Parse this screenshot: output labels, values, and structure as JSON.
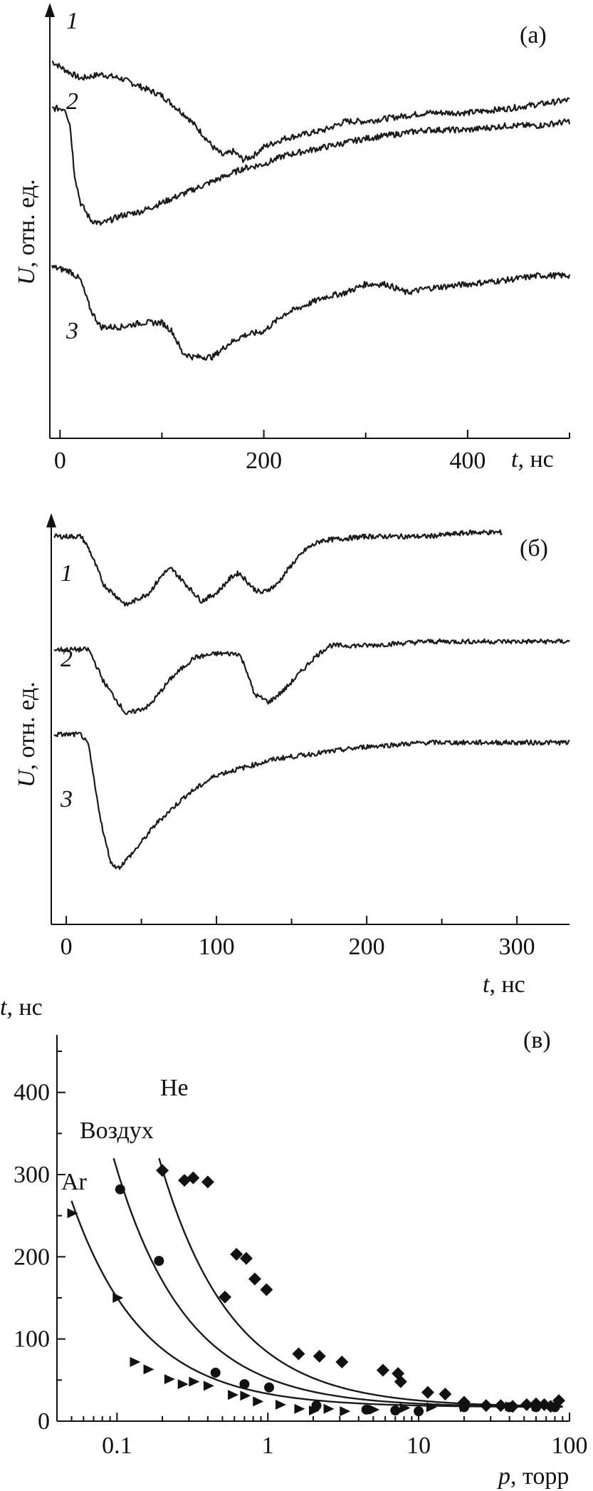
{
  "chart_data": [
    {
      "type": "line",
      "panel": "(a)",
      "panel_label": "(а)",
      "ylabel_var": "U",
      "ylabel_rest": ", отн. ед.",
      "xlabel_var": "t",
      "xlabel_rest": ", нс",
      "xlim": [
        -10,
        500
      ],
      "ylim": [
        0,
        1
      ],
      "x_ticks": [
        0,
        200,
        400
      ],
      "x_minor": [
        100,
        300,
        500
      ],
      "series": [
        {
          "name": "1",
          "points": [
            [
              -8,
              0.88
            ],
            [
              5,
              0.86
            ],
            [
              20,
              0.84
            ],
            [
              40,
              0.85
            ],
            [
              60,
              0.84
            ],
            [
              80,
              0.82
            ],
            [
              100,
              0.8
            ],
            [
              115,
              0.77
            ],
            [
              125,
              0.75
            ],
            [
              140,
              0.71
            ],
            [
              150,
              0.68
            ],
            [
              160,
              0.66
            ],
            [
              170,
              0.67
            ],
            [
              180,
              0.65
            ],
            [
              190,
              0.66
            ],
            [
              200,
              0.68
            ],
            [
              220,
              0.7
            ],
            [
              240,
              0.71
            ],
            [
              260,
              0.72
            ],
            [
              280,
              0.74
            ],
            [
              300,
              0.74
            ],
            [
              330,
              0.75
            ],
            [
              360,
              0.76
            ],
            [
              400,
              0.76
            ],
            [
              440,
              0.77
            ],
            [
              470,
              0.78
            ],
            [
              500,
              0.79
            ]
          ]
        },
        {
          "name": "2",
          "points": [
            [
              -8,
              0.77
            ],
            [
              5,
              0.77
            ],
            [
              10,
              0.73
            ],
            [
              14,
              0.62
            ],
            [
              20,
              0.55
            ],
            [
              30,
              0.51
            ],
            [
              40,
              0.5
            ],
            [
              60,
              0.52
            ],
            [
              80,
              0.53
            ],
            [
              100,
              0.55
            ],
            [
              120,
              0.57
            ],
            [
              140,
              0.59
            ],
            [
              160,
              0.61
            ],
            [
              180,
              0.63
            ],
            [
              200,
              0.64
            ],
            [
              220,
              0.66
            ],
            [
              240,
              0.67
            ],
            [
              260,
              0.68
            ],
            [
              280,
              0.69
            ],
            [
              300,
              0.7
            ],
            [
              330,
              0.71
            ],
            [
              360,
              0.72
            ],
            [
              400,
              0.72
            ],
            [
              440,
              0.73
            ],
            [
              470,
              0.73
            ],
            [
              500,
              0.74
            ]
          ]
        },
        {
          "name": "3",
          "points": [
            [
              -8,
              0.4
            ],
            [
              10,
              0.39
            ],
            [
              20,
              0.37
            ],
            [
              30,
              0.3
            ],
            [
              40,
              0.26
            ],
            [
              60,
              0.26
            ],
            [
              80,
              0.27
            ],
            [
              100,
              0.27
            ],
            [
              110,
              0.25
            ],
            [
              120,
              0.2
            ],
            [
              130,
              0.19
            ],
            [
              150,
              0.19
            ],
            [
              165,
              0.22
            ],
            [
              180,
              0.24
            ],
            [
              200,
              0.25
            ],
            [
              220,
              0.29
            ],
            [
              240,
              0.31
            ],
            [
              260,
              0.33
            ],
            [
              280,
              0.34
            ],
            [
              300,
              0.36
            ],
            [
              320,
              0.36
            ],
            [
              340,
              0.34
            ],
            [
              360,
              0.35
            ],
            [
              400,
              0.36
            ],
            [
              440,
              0.37
            ],
            [
              470,
              0.38
            ],
            [
              500,
              0.38
            ]
          ]
        }
      ]
    },
    {
      "type": "line",
      "panel": "(b)",
      "panel_label": "(б)",
      "ylabel_var": "U",
      "ylabel_rest": ", отн. ед.",
      "xlabel_var": "t",
      "xlabel_rest": ", нс",
      "xlim": [
        -10,
        335
      ],
      "ylim": [
        0,
        1
      ],
      "x_ticks": [
        0,
        100,
        200,
        300
      ],
      "x_minor": [
        50,
        150,
        250
      ],
      "series": [
        {
          "name": "1",
          "points": [
            [
              -8,
              0.96
            ],
            [
              10,
              0.96
            ],
            [
              15,
              0.93
            ],
            [
              25,
              0.84
            ],
            [
              40,
              0.79
            ],
            [
              55,
              0.82
            ],
            [
              65,
              0.87
            ],
            [
              70,
              0.88
            ],
            [
              80,
              0.84
            ],
            [
              90,
              0.8
            ],
            [
              100,
              0.82
            ],
            [
              110,
              0.86
            ],
            [
              115,
              0.87
            ],
            [
              125,
              0.83
            ],
            [
              130,
              0.82
            ],
            [
              140,
              0.84
            ],
            [
              150,
              0.89
            ],
            [
              160,
              0.93
            ],
            [
              170,
              0.95
            ],
            [
              200,
              0.96
            ],
            [
              240,
              0.96
            ],
            [
              270,
              0.97
            ],
            [
              290,
              0.97
            ]
          ]
        },
        {
          "name": "2",
          "points": [
            [
              -8,
              0.68
            ],
            [
              15,
              0.68
            ],
            [
              25,
              0.6
            ],
            [
              40,
              0.52
            ],
            [
              55,
              0.54
            ],
            [
              70,
              0.61
            ],
            [
              85,
              0.66
            ],
            [
              100,
              0.67
            ],
            [
              115,
              0.67
            ],
            [
              120,
              0.63
            ],
            [
              125,
              0.57
            ],
            [
              135,
              0.55
            ],
            [
              145,
              0.58
            ],
            [
              155,
              0.62
            ],
            [
              165,
              0.66
            ],
            [
              175,
              0.69
            ],
            [
              200,
              0.69
            ],
            [
              240,
              0.7
            ],
            [
              280,
              0.7
            ],
            [
              335,
              0.7
            ]
          ]
        },
        {
          "name": "3",
          "points": [
            [
              -8,
              0.47
            ],
            [
              10,
              0.47
            ],
            [
              15,
              0.44
            ],
            [
              20,
              0.32
            ],
            [
              25,
              0.22
            ],
            [
              30,
              0.15
            ],
            [
              35,
              0.14
            ],
            [
              45,
              0.18
            ],
            [
              60,
              0.25
            ],
            [
              80,
              0.32
            ],
            [
              100,
              0.37
            ],
            [
              120,
              0.39
            ],
            [
              140,
              0.41
            ],
            [
              160,
              0.42
            ],
            [
              180,
              0.43
            ],
            [
              200,
              0.44
            ],
            [
              240,
              0.45
            ],
            [
              280,
              0.45
            ],
            [
              335,
              0.45
            ]
          ]
        }
      ]
    },
    {
      "type": "scatter",
      "panel": "(c)",
      "panel_label": "(в)",
      "ylabel_var": "t",
      "ylabel_rest": ", нс",
      "xlabel_var": "p",
      "xlabel_rest": ", торр",
      "xscale": "log",
      "xlim": [
        0.04,
        100
      ],
      "ylim": [
        0,
        470
      ],
      "x_ticks": [
        0.1,
        1,
        10,
        100
      ],
      "x_tick_labels": [
        "0.1",
        "1",
        "10",
        "100"
      ],
      "y_ticks": [
        0,
        100,
        200,
        300,
        400
      ],
      "series": [
        {
          "name": "He",
          "marker": "diamond",
          "points": [
            [
              0.2,
              305
            ],
            [
              0.28,
              293
            ],
            [
              0.32,
              296
            ],
            [
              0.4,
              291
            ],
            [
              0.52,
              151
            ],
            [
              0.62,
              203
            ],
            [
              0.72,
              198
            ],
            [
              0.82,
              173
            ],
            [
              0.98,
              160
            ],
            [
              1.6,
              82
            ],
            [
              2.2,
              79
            ],
            [
              3.1,
              72
            ],
            [
              5.8,
              62
            ],
            [
              7.3,
              58
            ],
            [
              7.6,
              48
            ],
            [
              11.5,
              35
            ],
            [
              15,
              33
            ],
            [
              20,
              23
            ],
            [
              28,
              19
            ],
            [
              35,
              19
            ],
            [
              42,
              18
            ],
            [
              52,
              20
            ],
            [
              60,
              21
            ],
            [
              68,
              20
            ],
            [
              75,
              18
            ],
            [
              85,
              25
            ]
          ]
        },
        {
          "name": "Воздух",
          "marker": "circle",
          "points": [
            [
              0.105,
              282
            ],
            [
              0.19,
              195
            ],
            [
              0.45,
              59
            ],
            [
              0.7,
              45
            ],
            [
              1.02,
              41
            ],
            [
              2.1,
              19
            ],
            [
              4.5,
              14
            ],
            [
              7,
              13
            ],
            [
              10,
              12
            ],
            [
              20,
              17
            ],
            [
              40,
              17
            ],
            [
              60,
              17
            ],
            [
              80,
              17
            ]
          ]
        },
        {
          "name": "Ar",
          "marker": "triangle",
          "points": [
            [
              0.05,
              253
            ],
            [
              0.1,
              150
            ],
            [
              0.13,
              72
            ],
            [
              0.16,
              63
            ],
            [
              0.22,
              51
            ],
            [
              0.27,
              45
            ],
            [
              0.32,
              48
            ],
            [
              0.4,
              43
            ],
            [
              0.58,
              32
            ],
            [
              0.7,
              31
            ],
            [
              0.85,
              24
            ],
            [
              1.2,
              20
            ],
            [
              1.6,
              15
            ],
            [
              2,
              13
            ],
            [
              2.5,
              15
            ],
            [
              3.2,
              12
            ],
            [
              5,
              14
            ],
            [
              8,
              16
            ],
            [
              12,
              17
            ],
            [
              20,
              17
            ],
            [
              40,
              18
            ],
            [
              60,
              18
            ],
            [
              80,
              18
            ]
          ]
        }
      ],
      "fits": [
        {
          "name": "He",
          "x_range": [
            0.19,
            90
          ],
          "y_start": 320,
          "y_end": 17
        },
        {
          "name": "Воздух",
          "x_range": [
            0.095,
            90
          ],
          "y_start": 320,
          "y_end": 17
        },
        {
          "name": "Ar",
          "x_range": [
            0.05,
            90
          ],
          "y_start": 268,
          "y_end": 17
        }
      ]
    }
  ]
}
